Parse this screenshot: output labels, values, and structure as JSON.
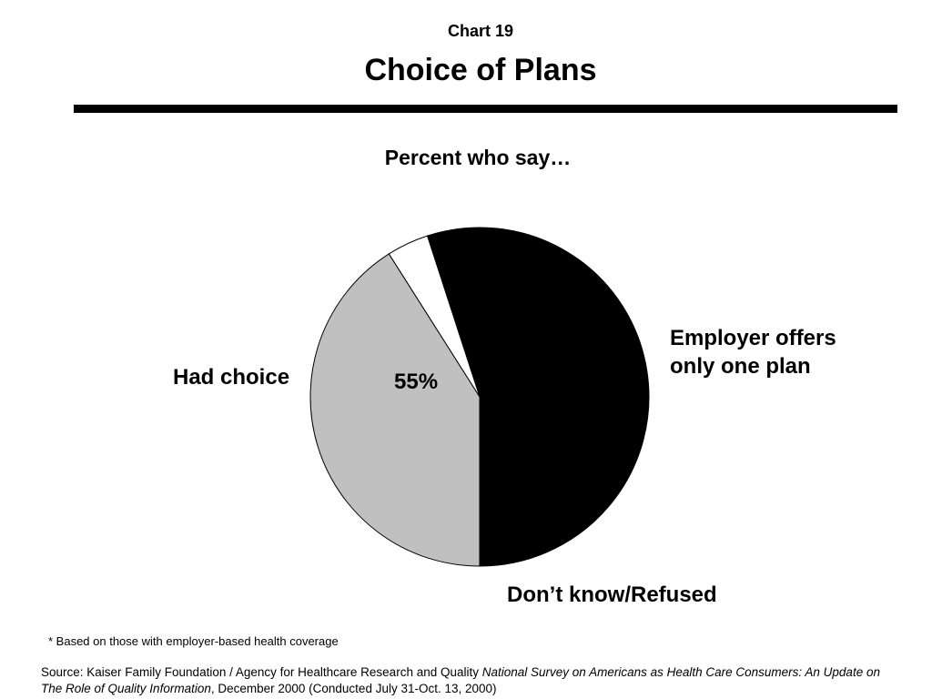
{
  "header": {
    "chart_number": "Chart 19",
    "title": "Choice of Plans",
    "subtitle": "Percent who say…"
  },
  "chart_data": {
    "type": "pie",
    "title": "Choice of Plans",
    "subtitle": "Percent who say…",
    "slices": [
      {
        "label": "Had choice",
        "value": 55,
        "value_label": "55%",
        "color": "#000000",
        "label_color": "#ffffff"
      },
      {
        "label": "Employer offers only one plan",
        "value": 41,
        "value_label": "41%",
        "color": "#c0c0c0",
        "label_color": "#000000"
      },
      {
        "label": "Don’t know/Refused",
        "value": 4,
        "value_label": "4%",
        "color": "#ffffff",
        "label_color": "#000000"
      }
    ]
  },
  "callouts": {
    "had_choice": "Had choice",
    "employer_line1": "Employer offers",
    "employer_line2": "only one plan",
    "dont_know": "Don’t know/Refused"
  },
  "footnote": "* Based on those with employer-based health coverage",
  "source": {
    "prefix": "Source: Kaiser Family Foundation / Agency for Healthcare Research and Quality ",
    "italic": "National Survey on Americans as Health Care Consumers:  An Update on The Role of Quality Information",
    "suffix": ", December 2000 (Conducted July 31-Oct. 13, 2000)"
  }
}
